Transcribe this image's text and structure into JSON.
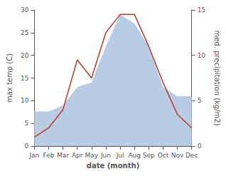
{
  "chart_data": {
    "type": "line",
    "x_label": "date (month)",
    "y_label": "max temp (C)",
    "y2_label": "med. precipitation (kg/m2)",
    "categories": [
      "Jan",
      "Feb",
      "Mar",
      "Apr",
      "May",
      "Jun",
      "Jul",
      "Aug",
      "Sep",
      "Oct",
      "Nov",
      "Dec"
    ],
    "series": [
      {
        "type": "area",
        "color": "#b8cce4",
        "axis": "y2",
        "values": [
          3.8,
          3.8,
          4.5,
          6.5,
          7.0,
          11.0,
          14.5,
          13.5,
          11.0,
          6.5,
          5.5,
          5.5
        ]
      },
      {
        "type": "line",
        "color": "#c0392b",
        "values": [
          2,
          4,
          8,
          19,
          15,
          25,
          29,
          29,
          22,
          14,
          7,
          4
        ]
      }
    ],
    "ylim": [
      0,
      30
    ],
    "yticks": [
      0,
      5,
      10,
      15,
      20,
      25,
      30
    ],
    "y2lim": [
      0,
      15
    ],
    "y2ticks": [
      0,
      5,
      10,
      15
    ],
    "grid": false
  }
}
